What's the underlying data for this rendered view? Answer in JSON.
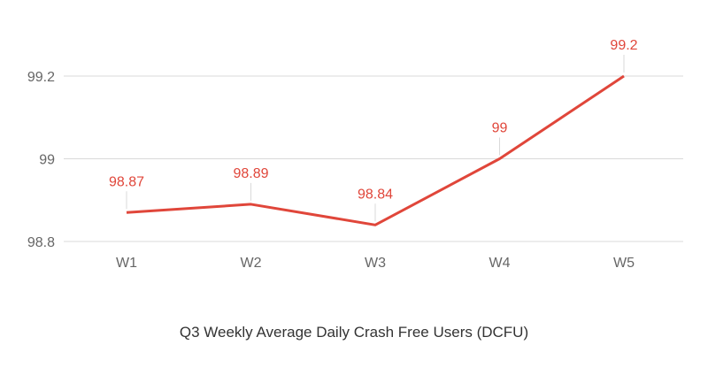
{
  "chart_data": {
    "type": "line",
    "title": "Q3 Weekly Average Daily Crash Free Users (DCFU)",
    "xlabel": "",
    "ylabel": "",
    "categories": [
      "W1",
      "W2",
      "W3",
      "W4",
      "W5"
    ],
    "series": [
      {
        "values": [
          98.87,
          98.89,
          98.84,
          99,
          99.2
        ],
        "labels": [
          "98.87",
          "98.89",
          "98.84",
          "99",
          "99.2"
        ]
      }
    ],
    "ylim": [
      98.8,
      99.2
    ],
    "yticks": [
      98.8,
      99,
      99.2
    ],
    "ytick_labels": [
      "98.8",
      "99",
      "99.2"
    ],
    "grid": true,
    "colors": {
      "line": "#e0463a",
      "label": "#e0463a",
      "grid": "#d9d9d9",
      "tick": "#666666"
    }
  }
}
